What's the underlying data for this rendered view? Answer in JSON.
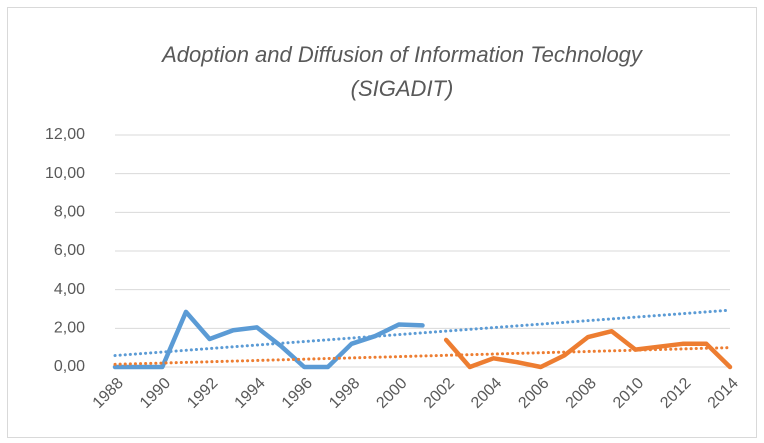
{
  "chart_data": {
    "type": "line",
    "title": [
      "Adoption and Diffusion of Information Technology",
      "(SIGADIT)"
    ],
    "x": [
      1988,
      1989,
      1990,
      1991,
      1992,
      1993,
      1994,
      1995,
      1996,
      1997,
      1998,
      1999,
      2000,
      2001,
      2002,
      2003,
      2004,
      2005,
      2006,
      2007,
      2008,
      2009,
      2010,
      2011,
      2012,
      2013,
      2014
    ],
    "series": [
      {
        "color": "#5b9bd5",
        "trendline": true,
        "values": [
          0,
          0,
          0,
          2.85,
          1.45,
          1.9,
          2.05,
          1.1,
          0,
          0,
          1.2,
          1.6,
          2.2,
          2.15,
          null,
          null,
          null,
          null,
          null,
          null,
          null,
          null,
          null,
          null,
          null,
          null,
          null
        ]
      },
      {
        "color": "#ed7d31",
        "trendline": true,
        "values": [
          null,
          null,
          null,
          null,
          null,
          null,
          null,
          null,
          null,
          null,
          null,
          null,
          null,
          null,
          1.4,
          0,
          0.45,
          0.25,
          0,
          0.6,
          1.55,
          1.85,
          0.9,
          1.05,
          1.2,
          1.2,
          0
        ]
      }
    ],
    "xlim": [
      1988,
      2014
    ],
    "xticks": [
      1988,
      1990,
      1992,
      1994,
      1996,
      1998,
      2000,
      2002,
      2004,
      2006,
      2008,
      2010,
      2012,
      2014
    ],
    "ylim": [
      0,
      12
    ],
    "yticks": [
      {
        "value": 0,
        "label": "0,00"
      },
      {
        "value": 2,
        "label": "2,00"
      },
      {
        "value": 4,
        "label": "4,00"
      },
      {
        "value": 6,
        "label": "6,00"
      },
      {
        "value": 8,
        "label": "8,00"
      },
      {
        "value": 10,
        "label": "10,00"
      },
      {
        "value": 12,
        "label": "12,00"
      }
    ],
    "grid": true
  }
}
